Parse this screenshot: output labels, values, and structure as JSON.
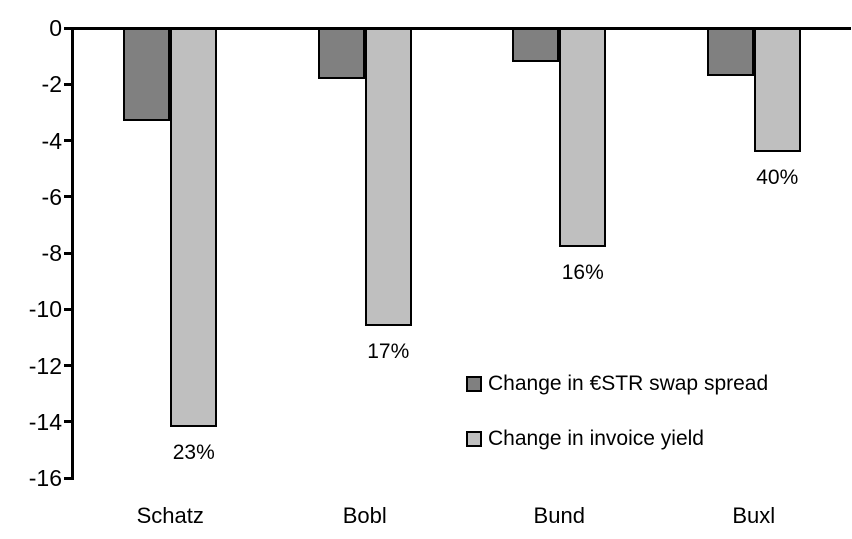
{
  "chart_data": {
    "type": "bar",
    "title": "",
    "xlabel": "",
    "ylabel": "",
    "categories": [
      "Schatz",
      "Bobl",
      "Bund",
      "Buxl"
    ],
    "series": [
      {
        "name": "Change in €STR swap spread",
        "color": "#808080",
        "values": [
          -3.3,
          -1.8,
          -1.2,
          -1.7
        ]
      },
      {
        "name": "Change in invoice yield",
        "color": "#bfbfbf",
        "values": [
          -14.2,
          -10.6,
          -7.8,
          -4.4
        ],
        "point_labels": [
          "23%",
          "17%",
          "16%",
          "40%"
        ]
      }
    ],
    "y_axis": {
      "min": -16,
      "max": 0,
      "tick_step": 2,
      "ticks": [
        0,
        -2,
        -4,
        -6,
        -8,
        -10,
        -12,
        -14,
        -16
      ]
    },
    "grid": false,
    "legend_position": "inside-middle-right",
    "bar_border_color": "#000000",
    "background_color": "#ffffff"
  }
}
